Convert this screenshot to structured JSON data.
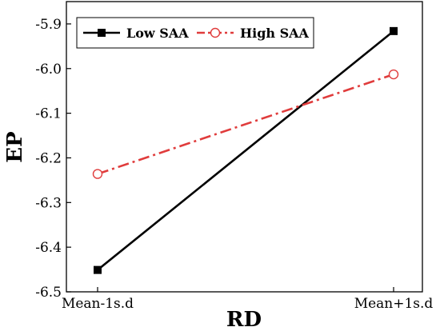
{
  "chart_data": {
    "type": "line",
    "categories": [
      "Mean-1s.d",
      "Mean+1s.d"
    ],
    "series": [
      {
        "name": "Low SAA",
        "values": [
          -6.451,
          -5.916
        ],
        "color": "#000000",
        "line_style": "solid",
        "marker": "filled-square"
      },
      {
        "name": "High SAA",
        "values": [
          -6.236,
          -6.013
        ],
        "color": "#e03c3c",
        "line_style": "dash-dot",
        "marker": "open-circle"
      }
    ],
    "xlabel": "RD",
    "ylabel": "EP",
    "ylim": [
      -6.5,
      -5.85
    ],
    "yticks": [
      -6.5,
      -6.4,
      -6.3,
      -6.2,
      -6.1,
      -6.0,
      -5.9
    ],
    "ytick_labels": [
      "-6.5",
      "-6.4",
      "-6.3",
      "-6.2",
      "-6.1",
      "-6.0",
      "-5.9"
    ],
    "grid": false,
    "legend_position": "top-left"
  }
}
